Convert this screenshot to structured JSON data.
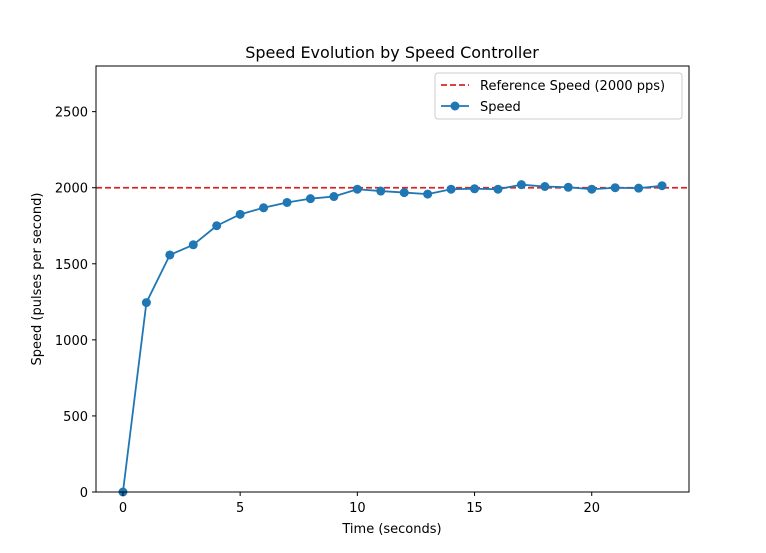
{
  "chart_data": {
    "type": "line",
    "title": "Speed Evolution by Speed Controller",
    "xlabel": "Time (seconds)",
    "ylabel": "Speed (pulses per second)",
    "xlim": [
      -1.15,
      24.15
    ],
    "ylim": [
      0,
      2800
    ],
    "xticks": [
      0,
      5,
      10,
      15,
      20
    ],
    "yticks": [
      0,
      500,
      1000,
      1500,
      2000,
      2500
    ],
    "grid": false,
    "legend_position": "upper-right",
    "reference_line": {
      "name": "Reference Speed (2000 pps)",
      "y": 2000,
      "color": "#d62728",
      "style": "dashed"
    },
    "series": [
      {
        "name": "Speed",
        "color": "#1f77b4",
        "marker": "circle",
        "x": [
          0,
          1,
          2,
          3,
          4,
          5,
          6,
          7,
          8,
          9,
          10,
          11,
          12,
          13,
          14,
          15,
          16,
          17,
          18,
          19,
          20,
          21,
          22,
          23
        ],
        "y": [
          0,
          1245,
          1558,
          1625,
          1750,
          1825,
          1868,
          1903,
          1928,
          1942,
          1990,
          1978,
          1968,
          1958,
          1990,
          1993,
          1990,
          2020,
          2008,
          2003,
          1990,
          2000,
          1997,
          2013
        ]
      }
    ]
  }
}
